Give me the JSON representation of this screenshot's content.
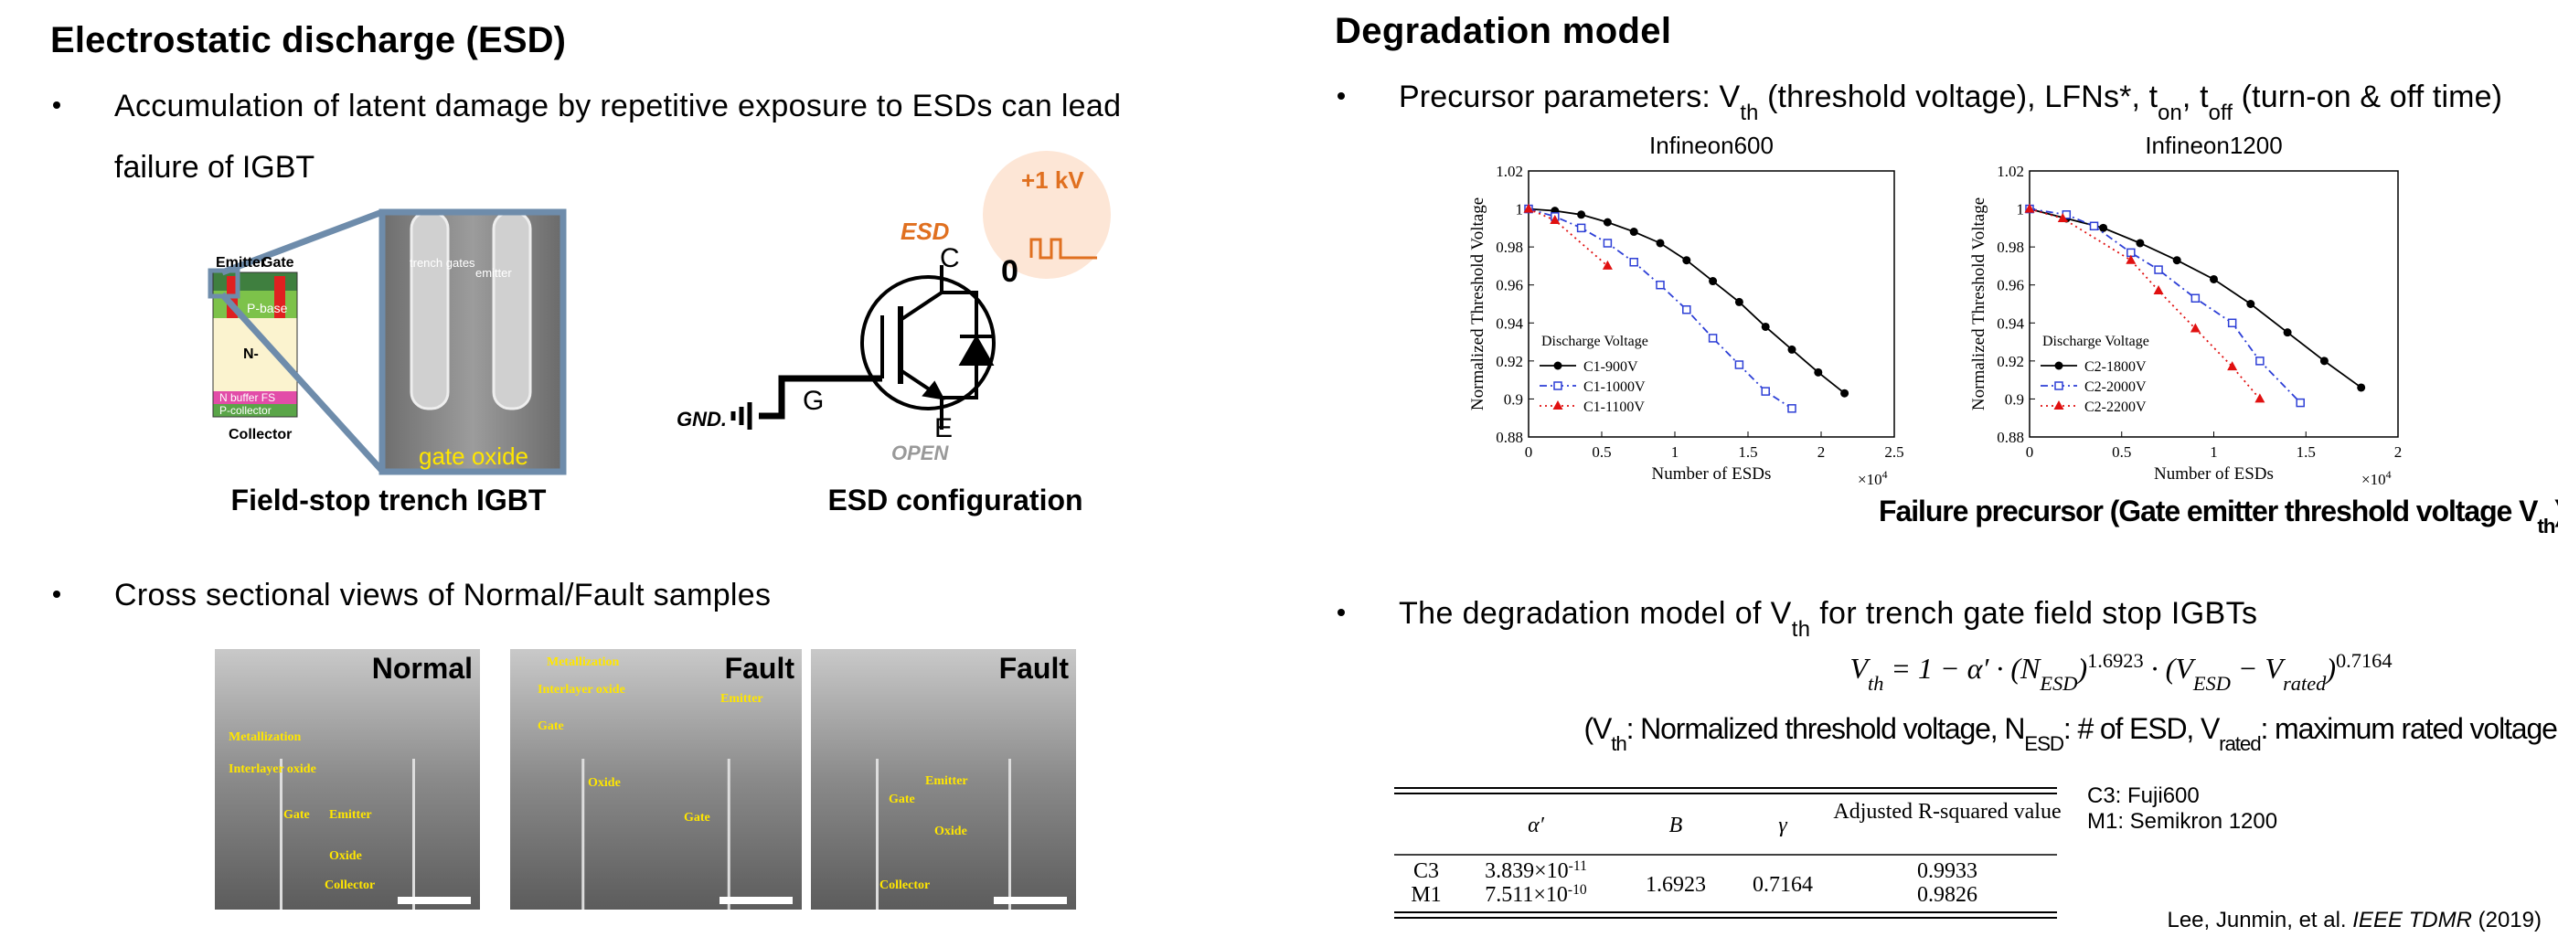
{
  "left": {
    "title": "Electrostatic discharge (ESD)",
    "bullet1": [
      "Accumulation of latent damage by repetitive exposure to ESDs can lead",
      "failure of IGBT"
    ],
    "bullet2": "Cross sectional views of Normal/Fault samples",
    "igbt": {
      "caption": "Field-stop trench IGBT",
      "emitter": "Emitter",
      "gate": "Gate",
      "pbase": "P-base",
      "ndrift": "N-",
      "nbuffer": "N buffer FS",
      "pcollector": "P-collector",
      "collector": "Collector",
      "trench": "trench gates",
      "sem_emitter": "emitter",
      "oxide": "gate oxide"
    },
    "esd": {
      "caption": "ESD configuration",
      "esd": "ESD",
      "c": "C",
      "g": "G",
      "e": "E",
      "gnd": "GND.",
      "open": "OPEN",
      "pulse": "+1 kV",
      "zero": "0"
    },
    "sem": [
      {
        "tag": "Normal",
        "labels": [
          "Metallization",
          "Interlayer oxide",
          "Gate",
          "Emitter",
          "Oxide",
          "Collector"
        ]
      },
      {
        "tag": "Fault",
        "labels": [
          "Metallization",
          "Interlayer oxide",
          "Emitter",
          "Gate",
          "Oxide",
          "Gate"
        ]
      },
      {
        "tag": "Fault",
        "labels": [
          "Emitter",
          "Gate",
          "Oxide",
          "Collector"
        ]
      }
    ]
  },
  "right": {
    "title": "Degradation model",
    "bullet1": [
      "Precursor parameters: V",
      "th",
      " (threshold voltage), LFNs*, t",
      "on",
      ", t",
      "off",
      " (turn-on & off time)"
    ],
    "caption": [
      "Failure precursor (Gate emitter threshold voltage V",
      "th",
      ")"
    ],
    "bullet2": [
      "The degradation model of V",
      "th",
      " for trench gate field stop IGBTs"
    ],
    "equation": [
      {
        "t": "V"
      },
      {
        "sub": "th"
      },
      {
        "t": " = 1 − α′ · (N"
      },
      {
        "sub": "ESD"
      },
      {
        "t": ")"
      },
      {
        "sup": "1.6923"
      },
      {
        "t": " · (V"
      },
      {
        "sub": "ESD"
      },
      {
        "t": " − V"
      },
      {
        "sub": "rated"
      },
      {
        "t": ")"
      },
      {
        "sup": "0.7164"
      }
    ],
    "definition": [
      "(V",
      "th",
      ": Normalized threshold voltage, N",
      "ESD",
      ": # of ESD, V",
      "rated",
      ": maximum rated voltage of IGBT)"
    ],
    "table": {
      "headers": [
        "α′",
        "B",
        "γ",
        "Adjusted R-squared value"
      ],
      "rows": [
        {
          "name": "C3",
          "alpha": [
            "3.839×10",
            "-11"
          ],
          "r2": "0.9933"
        },
        {
          "name": "M1",
          "alpha": [
            "7.511×10",
            "-10"
          ],
          "r2": "0.9826"
        }
      ],
      "B": "1.6923",
      "gamma": "0.7164"
    },
    "notes": [
      "C3: Fuji600",
      "M1: Semikron 1200"
    ],
    "citation": [
      "Lee, Junmin, et al. ",
      "IEEE TDMR",
      " (2019)"
    ]
  },
  "chart_data": [
    {
      "type": "line",
      "title": "Infineon600",
      "x_label": "Number of ESDs",
      "y_label": "Normalized Threshold Voltage",
      "x_scale": [
        "×10",
        "4"
      ],
      "legend_title": "Discharge Voltage",
      "legend": "lower left",
      "xlim": [
        0,
        25000
      ],
      "ylim": [
        0.88,
        1.02
      ],
      "xticks": [
        0,
        {
          "value": 5000,
          "label": "0.5"
        },
        {
          "value": 10000,
          "label": "1"
        },
        {
          "value": 15000,
          "label": "1.5"
        },
        {
          "value": 20000,
          "label": "2"
        },
        {
          "value": 25000,
          "label": "2.5"
        }
      ],
      "yticks": [
        0.88,
        0.9,
        0.92,
        0.94,
        0.96,
        0.98,
        1,
        1.02
      ],
      "series": [
        {
          "name": "C1-900V",
          "color": "#000000",
          "marker": "circle",
          "linestyle": "solid",
          "x": [
            0,
            1800,
            3600,
            5400,
            7200,
            9000,
            10800,
            12600,
            14400,
            16200,
            18000,
            19800,
            21600
          ],
          "values": [
            1,
            0.999,
            0.997,
            0.993,
            0.988,
            0.982,
            0.973,
            0.962,
            0.951,
            0.938,
            0.926,
            0.914,
            0.903
          ]
        },
        {
          "name": "C1-1000V",
          "color": "#2d3fd6",
          "marker": "square",
          "linestyle": "dashdot",
          "x": [
            0,
            1800,
            3600,
            5400,
            7200,
            9000,
            10800,
            12600,
            14400,
            16200,
            18000
          ],
          "values": [
            1,
            0.996,
            0.99,
            0.982,
            0.972,
            0.96,
            0.947,
            0.932,
            0.918,
            0.904,
            0.895
          ]
        },
        {
          "name": "C1-1100V",
          "color": "#e01010",
          "marker": "triangle",
          "linestyle": "dotted",
          "x": [
            0,
            1800,
            5400
          ],
          "values": [
            1,
            0.994,
            0.97
          ]
        }
      ]
    },
    {
      "type": "line",
      "title": "Infineon1200",
      "x_label": "Number of ESDs",
      "y_label": "Normalized Threshold Voltage",
      "x_scale": [
        "×10",
        "4"
      ],
      "legend_title": "Discharge Voltage",
      "legend": "lower left",
      "xlim": [
        0,
        20000
      ],
      "ylim": [
        0.88,
        1.02
      ],
      "xticks": [
        0,
        {
          "value": 5000,
          "label": "0.5"
        },
        {
          "value": 10000,
          "label": "1"
        },
        {
          "value": 15000,
          "label": "1.5"
        },
        {
          "value": 20000,
          "label": "2"
        }
      ],
      "yticks": [
        0.88,
        0.9,
        0.92,
        0.94,
        0.96,
        0.98,
        1,
        1.02
      ],
      "series": [
        {
          "name": "C2-1800V",
          "color": "#000000",
          "marker": "circle",
          "linestyle": "solid",
          "x": [
            0,
            2000,
            4000,
            6000,
            8000,
            10000,
            12000,
            14000,
            16000,
            18000
          ],
          "values": [
            1,
            0.995,
            0.99,
            0.982,
            0.973,
            0.963,
            0.95,
            0.935,
            0.92,
            0.906
          ]
        },
        {
          "name": "C2-2000V",
          "color": "#2d3fd6",
          "marker": "square",
          "linestyle": "dashdot",
          "x": [
            0,
            2000,
            3500,
            5500,
            7000,
            9000,
            11000,
            12500,
            14700
          ],
          "values": [
            1,
            0.997,
            0.991,
            0.977,
            0.968,
            0.953,
            0.94,
            0.92,
            0.898
          ]
        },
        {
          "name": "C2-2200V",
          "color": "#e01010",
          "marker": "triangle",
          "linestyle": "dotted",
          "x": [
            0,
            1800,
            5500,
            7000,
            9000,
            11000,
            12500
          ],
          "values": [
            1,
            0.995,
            0.973,
            0.957,
            0.937,
            0.917,
            0.9
          ]
        }
      ]
    }
  ]
}
